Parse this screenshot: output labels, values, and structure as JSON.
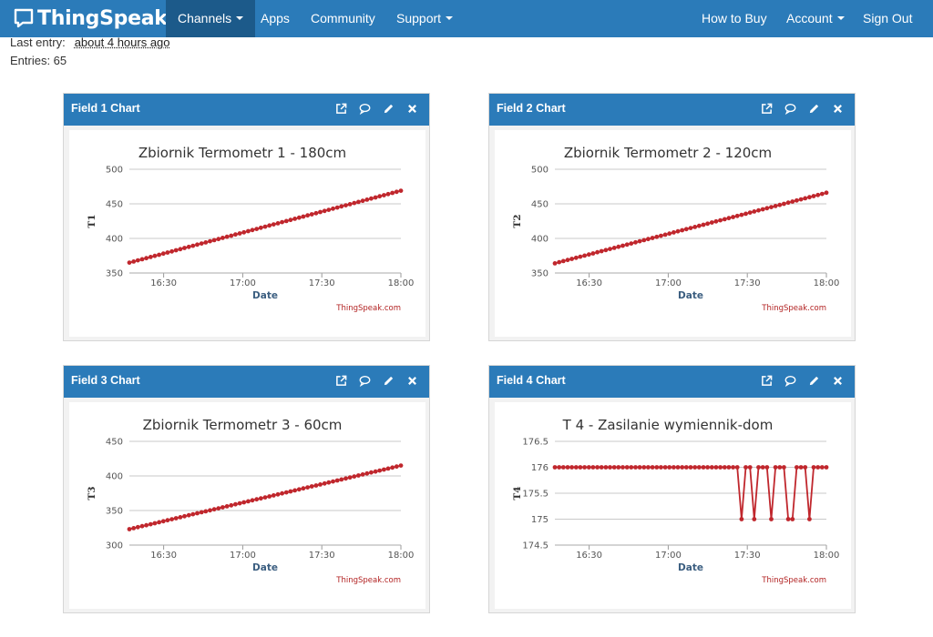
{
  "brand": {
    "name": "ThingSpeak",
    "tm": "™"
  },
  "nav": {
    "channels": "Channels",
    "apps": "Apps",
    "community": "Community",
    "support": "Support",
    "how_to_buy": "How to Buy",
    "account": "Account",
    "sign_out": "Sign Out"
  },
  "channel_meta": {
    "last_entry_label": "Last entry:",
    "last_entry_value": "about 4 hours ago",
    "entries_text": "Entries: 65"
  },
  "panels": [
    {
      "title": "Field 1 Chart"
    },
    {
      "title": "Field 2 Chart"
    },
    {
      "title": "Field 3 Chart"
    },
    {
      "title": "Field 4 Chart"
    }
  ],
  "colors": {
    "header": "#2b7bb9",
    "active_nav": "#1c5a8a",
    "series": "#c0272d",
    "credit": "#b22222"
  },
  "chart_data": [
    {
      "type": "line",
      "title": "Zbiornik Termometr 1 - 180cm",
      "xlabel": "Date",
      "ylabel": "T1",
      "credit": "ThingSpeak.com",
      "ylim": [
        350,
        500
      ],
      "yticks": [
        350,
        400,
        450,
        500
      ],
      "xlim": [
        "16:17",
        "18:00"
      ],
      "xticks": [
        "16:30",
        "17:00",
        "17:30",
        "18:00"
      ],
      "grid": true,
      "series": [
        {
          "start": [
            "16:17",
            365
          ],
          "end": [
            "18:00",
            469
          ],
          "points": 65
        }
      ]
    },
    {
      "type": "line",
      "title": "Zbiornik Termometr 2 - 120cm",
      "xlabel": "Date",
      "ylabel": "T2",
      "credit": "ThingSpeak.com",
      "ylim": [
        350,
        500
      ],
      "yticks": [
        350,
        400,
        450,
        500
      ],
      "xlim": [
        "16:17",
        "18:00"
      ],
      "xticks": [
        "16:30",
        "17:00",
        "17:30",
        "18:00"
      ],
      "grid": true,
      "series": [
        {
          "start": [
            "16:17",
            364
          ],
          "end": [
            "18:00",
            466
          ],
          "points": 65
        }
      ]
    },
    {
      "type": "line",
      "title": "Zbiornik Termometr 3 - 60cm",
      "xlabel": "Date",
      "ylabel": "T3",
      "credit": "ThingSpeak.com",
      "ylim": [
        300,
        450
      ],
      "yticks": [
        300,
        350,
        400,
        450
      ],
      "xlim": [
        "16:17",
        "18:00"
      ],
      "xticks": [
        "16:30",
        "17:00",
        "17:30",
        "18:00"
      ],
      "grid": true,
      "series": [
        {
          "start": [
            "16:17",
            323
          ],
          "end": [
            "18:00",
            415
          ],
          "points": 65
        }
      ]
    },
    {
      "type": "line",
      "title": "T 4 - Zasilanie wymiennik-dom",
      "xlabel": "Date",
      "ylabel": "T4",
      "credit": "ThingSpeak.com",
      "ylim": [
        174.5,
        176.5
      ],
      "yticks": [
        174.5,
        175,
        175.5,
        176,
        176.5
      ],
      "xlim": [
        "16:17",
        "18:00"
      ],
      "xticks": [
        "16:30",
        "17:00",
        "17:30",
        "18:00"
      ],
      "grid": true,
      "series": [
        {
          "points": 65,
          "values": [
            176,
            176,
            176,
            176,
            176,
            176,
            176,
            176,
            176,
            176,
            176,
            176,
            176,
            176,
            176,
            176,
            176,
            176,
            176,
            176,
            176,
            176,
            176,
            176,
            176,
            176,
            176,
            176,
            176,
            176,
            176,
            176,
            176,
            176,
            176,
            176,
            176,
            176,
            176,
            176,
            176,
            176,
            176,
            176,
            175,
            176,
            176,
            175,
            176,
            176,
            176,
            175,
            176,
            176,
            176,
            175,
            175,
            176,
            176,
            176,
            175,
            176,
            176,
            176,
            176
          ]
        }
      ]
    }
  ]
}
